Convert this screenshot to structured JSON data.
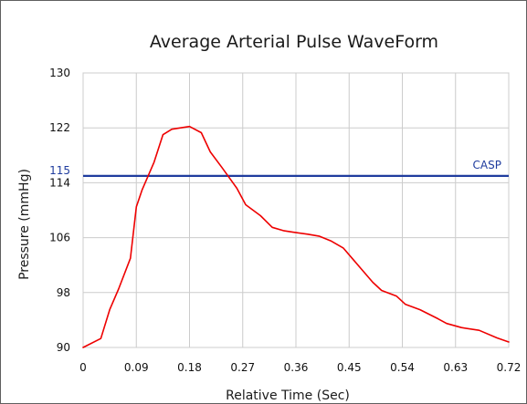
{
  "chart_data": {
    "type": "line",
    "title": "Average Arterial Pulse WaveForm",
    "xlabel": "Relative Time (Sec)",
    "ylabel": "Pressure (mmHg)",
    "xlim": [
      0,
      0.72
    ],
    "ylim": [
      90,
      130
    ],
    "x_ticks": [
      "0",
      "0.09",
      "0.18",
      "0.27",
      "0.36",
      "0.45",
      "0.54",
      "0.63",
      "0.72"
    ],
    "y_ticks": [
      "90",
      "98",
      "106",
      "114",
      "122",
      "130"
    ],
    "grid": true,
    "legend": "none",
    "series": [
      {
        "color": "#ee0000",
        "x": [
          0,
          0.03,
          0.045,
          0.06,
          0.08,
          0.09,
          0.1,
          0.12,
          0.135,
          0.15,
          0.18,
          0.2,
          0.215,
          0.235,
          0.26,
          0.275,
          0.3,
          0.32,
          0.34,
          0.355,
          0.38,
          0.4,
          0.42,
          0.44,
          0.455,
          0.47,
          0.49,
          0.505,
          0.53,
          0.545,
          0.57,
          0.6,
          0.615,
          0.64,
          0.67,
          0.7,
          0.72
        ],
        "y": [
          90,
          91.3,
          95.5,
          98.5,
          103,
          110.5,
          113,
          117,
          121,
          121.8,
          122.2,
          121.3,
          118.5,
          116.2,
          113.2,
          110.8,
          109.2,
          107.5,
          107,
          106.8,
          106.5,
          106.2,
          105.5,
          104.5,
          103,
          101.5,
          99.5,
          98.3,
          97.5,
          96.3,
          95.5,
          94.2,
          93.5,
          92.9,
          92.5,
          91.4,
          90.8
        ]
      }
    ],
    "reference_line": {
      "label": "CASP",
      "value": 115,
      "value_label": "115",
      "color": "#1f3c9e"
    }
  }
}
